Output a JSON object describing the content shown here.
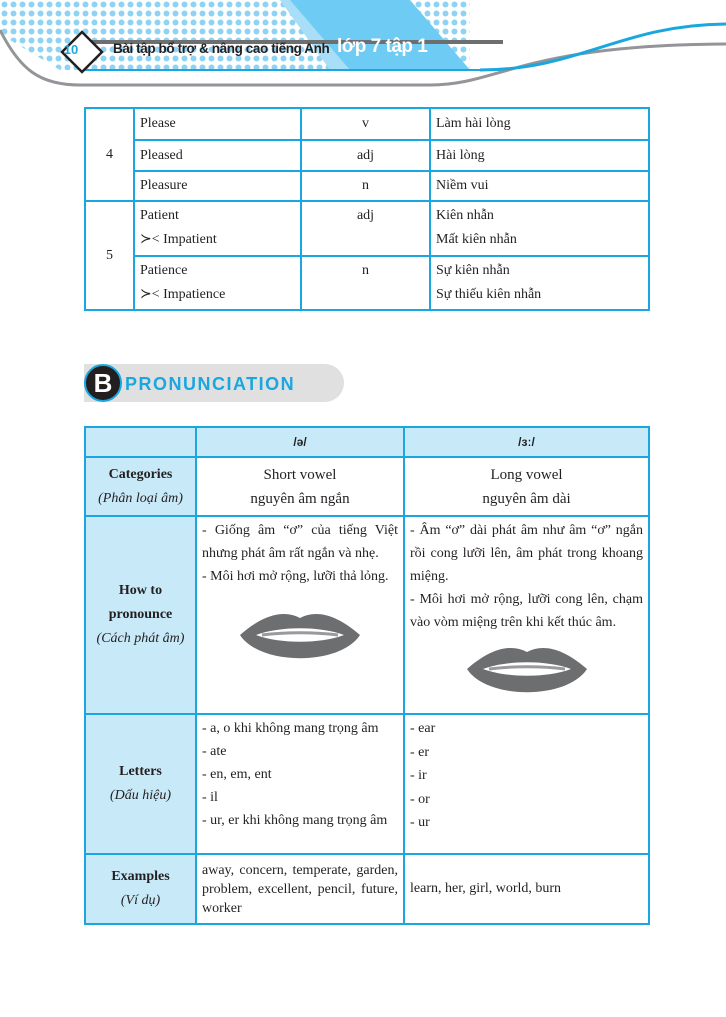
{
  "header": {
    "page_number": "10",
    "title": "Bài tập bổ trợ & nâng cao tiếng Anh",
    "subtitle": "lớp 7 tập 1"
  },
  "word_table": {
    "groups": [
      {
        "num": "4",
        "rows": [
          {
            "word": "Please",
            "pos": "v",
            "meaning": "Làm hài lòng"
          },
          {
            "word": "Pleased",
            "pos": "adj",
            "meaning": "Hài lòng"
          },
          {
            "word": "Pleasure",
            "pos": "n",
            "meaning": "Niềm vui"
          }
        ]
      },
      {
        "num": "5",
        "rows": [
          {
            "word": "Patient",
            "antonym": "≻< Impatient",
            "pos": "adj",
            "meaning": "Kiên nhẫn",
            "meaning2": "Mất kiên nhẫn"
          },
          {
            "word": "Patience",
            "antonym": "≻< Impatience",
            "pos": "n",
            "meaning": "Sự kiên nhẫn",
            "meaning2": "Sự thiếu kiên nhẫn"
          }
        ]
      }
    ]
  },
  "section": {
    "letter": "B",
    "title": "PRONUNCIATION"
  },
  "pron_table": {
    "headers": [
      "/ə/",
      "/ɜː/"
    ],
    "categories": {
      "label": "Categories",
      "label_vi": "(Phân loại âm)",
      "short": [
        "Short vowel",
        "nguyên âm ngắn"
      ],
      "long": [
        "Long vowel",
        "nguyên âm dài"
      ]
    },
    "how": {
      "label": "How to pronounce",
      "label_vi": "(Cách phát âm)",
      "short": [
        "- Giống âm “ơ” của tiếng Việt nhưng phát âm rất ngắn và nhẹ.",
        "- Môi hơi mở rộng, lưỡi thả lỏng."
      ],
      "long": [
        "- Âm “ơ” dài phát âm như âm “ơ” ngắn rồi cong lưỡi lên, âm phát trong khoang miệng.",
        "- Môi hơi mở rộng, lưỡi cong lên, chạm vào vòm miệng trên khi kết thúc âm."
      ]
    },
    "letters": {
      "label": "Letters",
      "label_vi": "(Dấu hiệu)",
      "short": [
        "- a, o khi không mang trọng âm",
        "- ate",
        "- en, em, ent",
        "- il",
        "- ur, er khi không mang trọng âm"
      ],
      "long": [
        "- ear",
        "- er",
        "- ir",
        "- or",
        "- ur"
      ]
    },
    "examples": {
      "label": "Examples",
      "label_vi": "(Ví dụ)",
      "short": "away, concern, temperate, garden, problem, excellent, pencil, future, worker",
      "long": "learn, her, girl, world, burn"
    }
  },
  "colors": {
    "accent": "#1aa7e0",
    "light": "#c8e9f8"
  }
}
